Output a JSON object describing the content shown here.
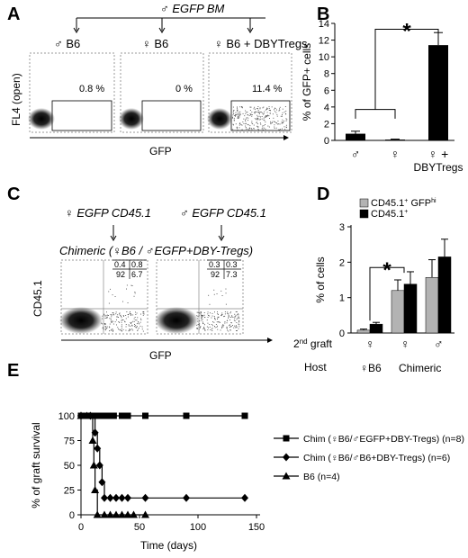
{
  "panels": {
    "A": "A",
    "B": "B",
    "C": "C",
    "D": "D",
    "E": "E"
  },
  "panelA": {
    "header": "♂ EGFP BM",
    "ylabel": "FL4 (open)",
    "xlabel": "GFP",
    "plots": [
      {
        "label": "♂ B6",
        "pct": "0.8 %"
      },
      {
        "label": "♀ B6",
        "pct": "0 %"
      },
      {
        "label": "♀ B6 + DBYTregs",
        "pct": "11.4 %"
      }
    ]
  },
  "panelC": {
    "header_left": "♀ EGFP CD45.1",
    "header_right": "♂ EGFP CD45.1",
    "subheader": "Chimeric (♀B6 / ♂EGFP+DBY-Tregs)",
    "ylabel": "CD45.1",
    "xlabel": "GFP",
    "plots": [
      {
        "q": [
          "0.4",
          "0.8",
          "92",
          "6.7"
        ]
      },
      {
        "q": [
          "0.3",
          "0.3",
          "92",
          "7.3"
        ]
      }
    ]
  },
  "panelD_extra": {
    "row1_label": "2nd graft",
    "row2_label": "Host",
    "graft": [
      "♀",
      "♀",
      "♂"
    ],
    "host": [
      "♀B6",
      "Chimeric"
    ]
  },
  "chart_data": [
    {
      "type": "bar",
      "panel": "B",
      "ylabel": "% of GFP+ cells",
      "categories": [
        "♂",
        "♀",
        "♀ + DBYTregs"
      ],
      "values": [
        0.8,
        0.1,
        11.4
      ],
      "errors": [
        0.3,
        0.05,
        1.5
      ],
      "ylim": [
        0,
        14
      ],
      "yticks": [
        0,
        2,
        4,
        6,
        8,
        10,
        12,
        14
      ],
      "annotation": "*"
    },
    {
      "type": "bar",
      "panel": "D",
      "ylabel": "% of cells",
      "categories": [
        "♀B6 ♀",
        "Chimeric ♀",
        "Chimeric ♂"
      ],
      "series": [
        {
          "name": "CD45.1+ GFPhi",
          "color": "#b3b3b3",
          "values": [
            0.08,
            1.2,
            1.57
          ],
          "errors": [
            0.03,
            0.3,
            0.5
          ]
        },
        {
          "name": "CD45.1+",
          "color": "#000000",
          "values": [
            0.25,
            1.38,
            2.15
          ],
          "errors": [
            0.05,
            0.35,
            0.5
          ]
        }
      ],
      "ylim": [
        0,
        3
      ],
      "yticks": [
        0,
        1,
        2,
        3
      ],
      "annotation": "*"
    },
    {
      "type": "line",
      "panel": "E",
      "xlabel": "Time (days)",
      "ylabel": "% of graft survival",
      "xlim": [
        0,
        150
      ],
      "ylim": [
        0,
        100
      ],
      "xticks": [
        0,
        50,
        100,
        150
      ],
      "yticks": [
        0,
        25,
        50,
        75,
        100
      ],
      "series": [
        {
          "name": "Chim (♀B6/♂EGFP+DBY-Tregs) (n=8)",
          "marker": "square",
          "steps": [
            [
              0,
              100
            ],
            [
              140,
              100
            ]
          ],
          "points": [
            [
              0,
              100
            ],
            [
              5,
              100
            ],
            [
              10,
              100
            ],
            [
              12,
              100
            ],
            [
              14,
              100
            ],
            [
              16,
              100
            ],
            [
              18,
              100
            ],
            [
              20,
              100
            ],
            [
              22,
              100
            ],
            [
              25,
              100
            ],
            [
              28,
              100
            ],
            [
              35,
              100
            ],
            [
              40,
              100
            ],
            [
              55,
              100
            ],
            [
              90,
              100
            ],
            [
              140,
              100
            ]
          ]
        },
        {
          "name": "Chim (♀B6/♂B6+DBY-Tregs) (n=6)",
          "marker": "diamond",
          "steps": [
            [
              0,
              100
            ],
            [
              12,
              100
            ],
            [
              12,
              83
            ],
            [
              14,
              83
            ],
            [
              14,
              67
            ],
            [
              16,
              67
            ],
            [
              16,
              50
            ],
            [
              18,
              50
            ],
            [
              18,
              33
            ],
            [
              20,
              33
            ],
            [
              20,
              17
            ],
            [
              140,
              17
            ]
          ],
          "points": [
            [
              0,
              100
            ],
            [
              8,
              100
            ],
            [
              12,
              83
            ],
            [
              14,
              67
            ],
            [
              16,
              50
            ],
            [
              18,
              33
            ],
            [
              20,
              17
            ],
            [
              25,
              17
            ],
            [
              30,
              17
            ],
            [
              35,
              17
            ],
            [
              40,
              17
            ],
            [
              55,
              17
            ],
            [
              90,
              17
            ],
            [
              140,
              17
            ]
          ]
        },
        {
          "name": "B6 (n=4)",
          "marker": "triangle",
          "steps": [
            [
              0,
              100
            ],
            [
              10,
              100
            ],
            [
              10,
              75
            ],
            [
              11,
              75
            ],
            [
              11,
              50
            ],
            [
              12,
              50
            ],
            [
              12,
              25
            ],
            [
              14,
              25
            ],
            [
              14,
              0
            ],
            [
              55,
              0
            ]
          ],
          "points": [
            [
              0,
              100
            ],
            [
              5,
              100
            ],
            [
              10,
              75
            ],
            [
              11,
              50
            ],
            [
              12,
              25
            ],
            [
              14,
              0
            ],
            [
              20,
              0
            ],
            [
              25,
              0
            ],
            [
              30,
              0
            ],
            [
              35,
              0
            ],
            [
              40,
              0
            ],
            [
              45,
              0
            ],
            [
              55,
              0
            ]
          ]
        }
      ]
    }
  ]
}
